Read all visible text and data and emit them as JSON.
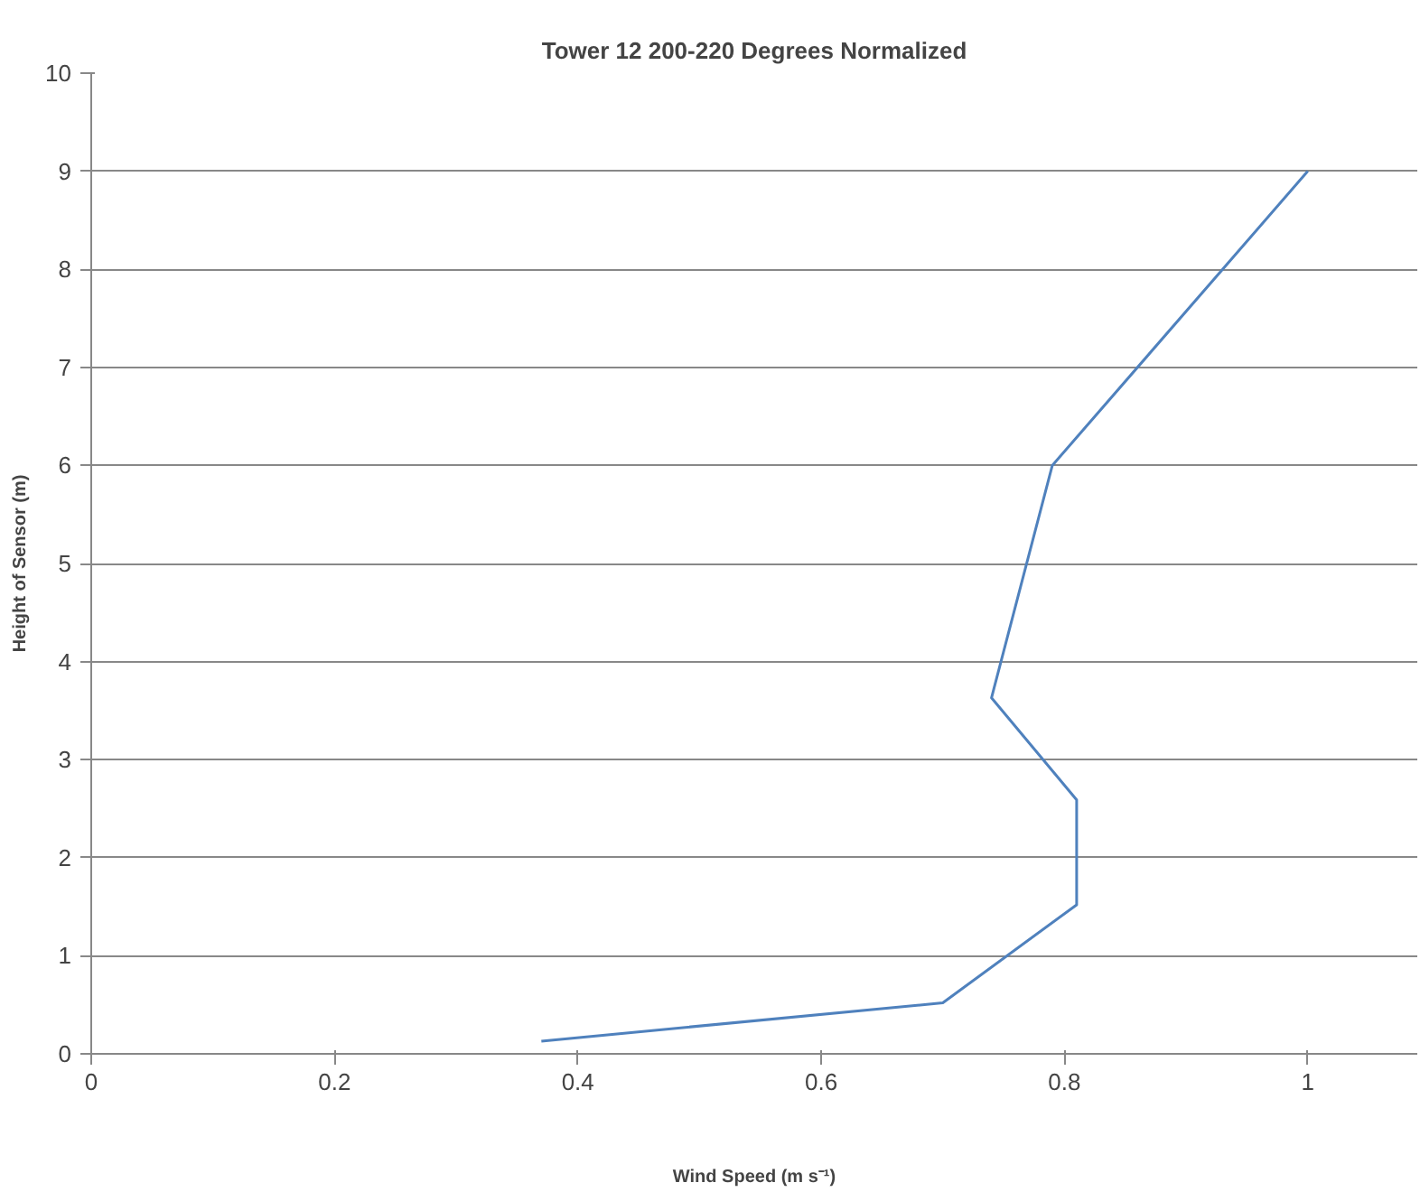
{
  "chart_data": {
    "type": "line",
    "title": "Tower 12 200-220 Degrees Normalized",
    "xlabel": "Wind Speed (m s⁻¹)",
    "ylabel": "Height of Sensor (m)",
    "series": [
      {
        "color": "#4f81bd",
        "x": [
          0.37,
          0.7,
          0.81,
          0.81,
          0.74,
          0.79,
          1.0
        ],
        "values": [
          0.13,
          0.52,
          1.52,
          2.59,
          3.63,
          6.0,
          9.0
        ]
      }
    ],
    "xlim": [
      0,
      1.09
    ],
    "xticks": [
      0,
      0.2,
      0.4,
      0.6,
      0.8,
      1
    ],
    "ylim": [
      0,
      10
    ],
    "yticks": [
      0,
      1,
      2,
      3,
      4,
      5,
      6,
      7,
      8,
      9,
      10
    ],
    "grid": "y",
    "marker": "none",
    "line_style": "solid"
  }
}
